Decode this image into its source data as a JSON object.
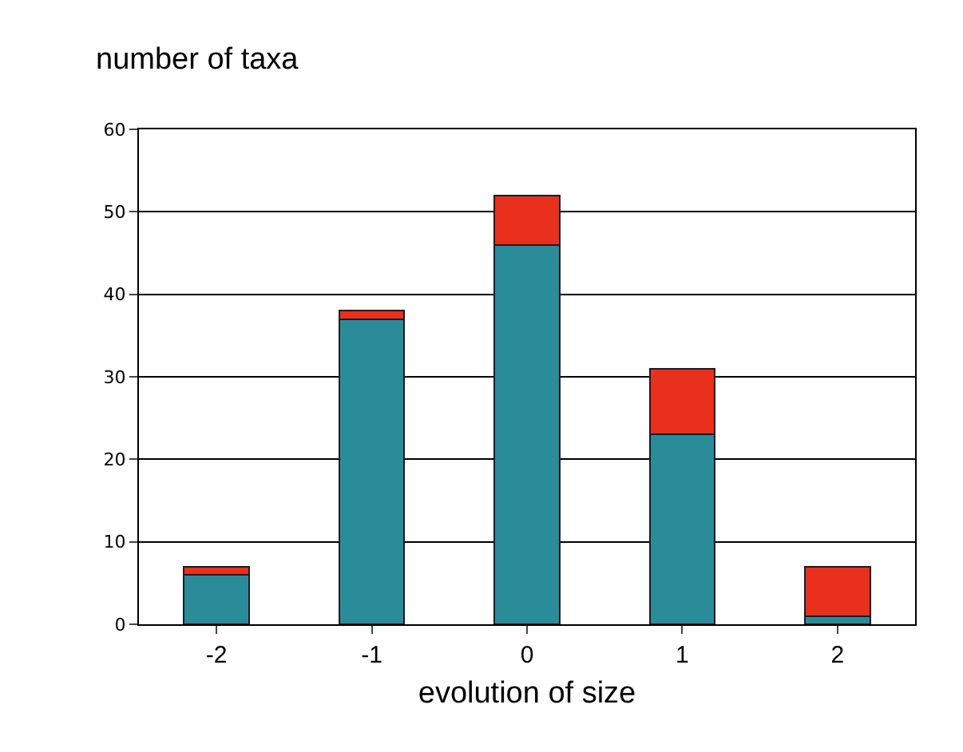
{
  "chart_data": {
    "type": "bar",
    "ylabel": "number of taxa",
    "xlabel": "evolution of size",
    "categories": [
      "-2",
      "-1",
      "0",
      "1",
      "2"
    ],
    "series": [
      {
        "color": "#2a8c99",
        "values": [
          6,
          37,
          46,
          23,
          1
        ]
      },
      {
        "color": "#e8301c",
        "values": [
          1,
          1,
          6,
          8,
          6
        ]
      }
    ],
    "stacked": true,
    "ylim": [
      0,
      60
    ],
    "yticks": [
      0,
      10,
      20,
      30,
      40,
      50,
      60
    ],
    "grid": "y"
  }
}
